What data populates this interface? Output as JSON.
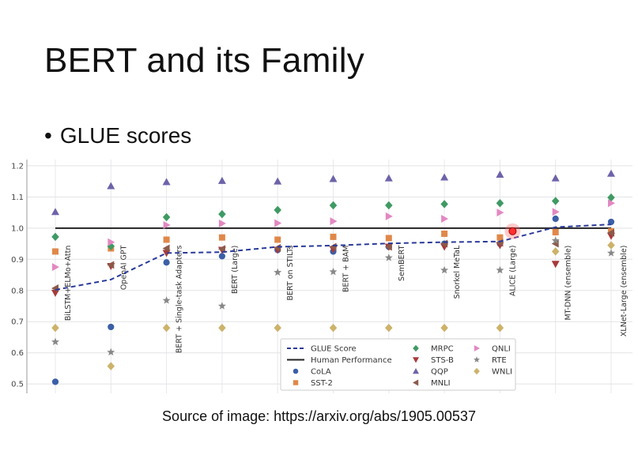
{
  "slide": {
    "title": "BERT and its Family",
    "bullet": "GLUE scores",
    "caption": "Source of image: https://arxiv.org/abs/1905.00537"
  },
  "chart_data": {
    "type": "scatter",
    "ylim": [
      0.47,
      1.22
    ],
    "yticks": [
      0.5,
      0.6,
      0.7,
      0.8,
      0.9,
      1.0,
      1.1,
      1.2
    ],
    "grid": true,
    "legend_position": "bottom-center",
    "categories": [
      "BiLSTM+ELMo+Attn",
      "OpenAI GPT",
      "BERT + Single-task Adapters",
      "BERT (Large)",
      "BERT on STILTs",
      "BERT + BAM",
      "SemBERT",
      "Snorkel MeTaL",
      "ALICE (Large)",
      "MT-DNN (ensemble)",
      "XLNet-Large (ensemble)"
    ],
    "human_performance": 1.0,
    "glue_score": [
      0.802,
      0.835,
      0.92,
      0.923,
      0.94,
      0.944,
      0.951,
      0.955,
      0.957,
      1.003,
      1.012
    ],
    "series": [
      {
        "name": "CoLA",
        "color": "#3b5fa8",
        "marker": "circle",
        "values": [
          0.507,
          0.683,
          0.89,
          0.91,
          0.93,
          0.925,
          0.94,
          0.95,
          0.95,
          1.03,
          1.02
        ]
      },
      {
        "name": "SST-2",
        "color": "#e0884a",
        "marker": "square",
        "values": [
          0.925,
          0.935,
          0.963,
          0.97,
          0.963,
          0.972,
          0.968,
          0.982,
          0.97,
          0.987,
          0.99
        ]
      },
      {
        "name": "MRPC",
        "color": "#3f9a63",
        "marker": "diamond",
        "values": [
          0.972,
          0.942,
          1.035,
          1.045,
          1.058,
          1.073,
          1.073,
          1.077,
          1.08,
          1.087,
          1.098
        ]
      },
      {
        "name": "STS-B",
        "color": "#a83a3a",
        "marker": "triangle-down",
        "values": [
          0.792,
          0.878,
          0.92,
          0.93,
          0.93,
          0.932,
          0.94,
          0.94,
          0.945,
          0.885,
          0.975
        ]
      },
      {
        "name": "QQP",
        "color": "#6d63aa",
        "marker": "triangle-up",
        "values": [
          1.052,
          1.135,
          1.148,
          1.152,
          1.15,
          1.158,
          1.16,
          1.163,
          1.172,
          1.16,
          1.175
        ]
      },
      {
        "name": "MNLI",
        "color": "#8c5a4a",
        "marker": "triangle-left",
        "values": [
          0.807,
          0.882,
          0.935,
          0.933,
          0.937,
          0.94,
          0.94,
          0.95,
          0.953,
          0.95,
          0.985
        ]
      },
      {
        "name": "QNLI",
        "color": "#e388c2",
        "marker": "triangle-right",
        "values": [
          0.875,
          0.955,
          1.01,
          1.015,
          1.016,
          1.022,
          1.038,
          1.03,
          1.05,
          1.052,
          1.08
        ]
      },
      {
        "name": "RTE",
        "color": "#888888",
        "marker": "star",
        "values": [
          0.635,
          0.602,
          0.768,
          0.75,
          0.858,
          0.86,
          0.905,
          0.865,
          0.865,
          0.96,
          0.92
        ]
      },
      {
        "name": "WNLI",
        "color": "#cdb26a",
        "marker": "diamond",
        "values": [
          0.68,
          0.557,
          0.68,
          0.68,
          0.68,
          0.68,
          0.68,
          0.68,
          0.68,
          0.925,
          0.945
        ]
      }
    ],
    "legend": [
      {
        "name": "GLUE Score",
        "kind": "dashed-line",
        "color": "#2a3a9a"
      },
      {
        "name": "Human Performance",
        "kind": "solid-line",
        "color": "#222222"
      },
      {
        "name": "CoLA",
        "kind": "marker",
        "series": 0
      },
      {
        "name": "SST-2",
        "kind": "marker",
        "series": 1
      },
      {
        "name": "MRPC",
        "kind": "marker",
        "series": 2
      },
      {
        "name": "STS-B",
        "kind": "marker",
        "series": 3
      },
      {
        "name": "QQP",
        "kind": "marker",
        "series": 4
      },
      {
        "name": "MNLI",
        "kind": "marker",
        "series": 5
      },
      {
        "name": "QNLI",
        "kind": "marker",
        "series": 6
      },
      {
        "name": "RTE",
        "kind": "marker",
        "series": 7
      },
      {
        "name": "WNLI",
        "kind": "marker",
        "series": 8
      }
    ],
    "highlight_index": 8
  }
}
